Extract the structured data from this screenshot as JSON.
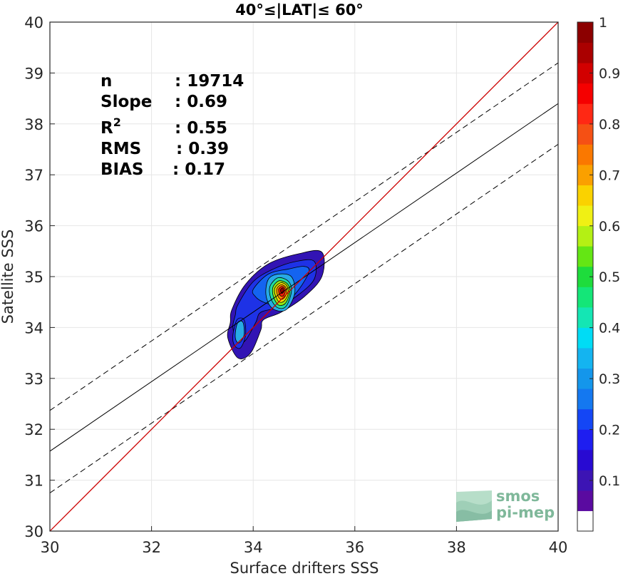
{
  "chart_data": {
    "type": "scatter",
    "subtype": "density-contour",
    "title": "40°≤|LAT|≤ 60°",
    "xlabel": "Surface drifters SSS",
    "ylabel": "Satellite SSS",
    "xlim": [
      30,
      40
    ],
    "ylim": [
      30,
      40
    ],
    "xticks": [
      "30",
      "32",
      "34",
      "36",
      "38",
      "40"
    ],
    "yticks": [
      "30",
      "31",
      "32",
      "33",
      "34",
      "35",
      "36",
      "37",
      "38",
      "39",
      "40"
    ],
    "grid": true,
    "stats": [
      {
        "label": "n",
        "value": ": 19714"
      },
      {
        "label": "Slope",
        "value": ": 0.69"
      },
      {
        "label": "R",
        "sup": "2",
        "value": ": 0.55"
      },
      {
        "label": "RMS",
        "value": ": 0.39"
      },
      {
        "label": "BIAS",
        "value": ": 0.17"
      }
    ],
    "lines": {
      "identity": {
        "x": [
          30,
          40
        ],
        "y": [
          30,
          40
        ],
        "color": "#cc0000"
      },
      "fit": {
        "x": [
          30,
          40
        ],
        "y": [
          31.57,
          38.4
        ],
        "color": "#000000"
      },
      "fit_upper": {
        "x": [
          30,
          40
        ],
        "y": [
          32.37,
          39.2
        ],
        "color": "#000000",
        "style": "dashed"
      },
      "fit_lower": {
        "x": [
          30,
          40
        ],
        "y": [
          30.75,
          37.6
        ],
        "color": "#000000",
        "style": "dashed"
      }
    },
    "density": {
      "peak": [
        34.58,
        34.72
      ],
      "levels": [
        {
          "level": 0.05,
          "color": "#3214b4",
          "points": [
            [
              33.58,
              34.35
            ],
            [
              33.85,
              34.85
            ],
            [
              34.3,
              35.25
            ],
            [
              34.9,
              35.45
            ],
            [
              35.35,
              35.48
            ],
            [
              35.35,
              35.0
            ],
            [
              35.0,
              34.6
            ],
            [
              34.55,
              34.3
            ],
            [
              34.2,
              34.15
            ],
            [
              34.15,
              33.95
            ],
            [
              33.95,
              33.5
            ],
            [
              33.7,
              33.4
            ],
            [
              33.5,
              33.8
            ],
            [
              33.55,
              34.1
            ]
          ]
        },
        {
          "level": 0.15,
          "color": "#1e32e6",
          "points": [
            [
              33.7,
              34.45
            ],
            [
              34.0,
              34.9
            ],
            [
              34.4,
              35.15
            ],
            [
              34.85,
              35.3
            ],
            [
              35.2,
              35.3
            ],
            [
              35.2,
              34.95
            ],
            [
              34.9,
              34.65
            ],
            [
              34.5,
              34.4
            ],
            [
              34.15,
              34.3
            ],
            [
              34.05,
              34.1
            ],
            [
              33.85,
              33.75
            ],
            [
              33.7,
              33.7
            ],
            [
              33.6,
              34.0
            ],
            [
              33.65,
              34.25
            ]
          ]
        },
        {
          "level": 0.25,
          "color": "#1464f0",
          "points": [
            [
              34.0,
              34.75
            ],
            [
              34.3,
              35.05
            ],
            [
              34.7,
              35.15
            ],
            [
              35.0,
              35.2
            ],
            [
              35.1,
              35.1
            ],
            [
              34.9,
              34.75
            ],
            [
              34.65,
              34.5
            ],
            [
              34.4,
              34.45
            ],
            [
              34.2,
              34.5
            ],
            [
              34.05,
              34.6
            ]
          ]
        },
        {
          "level": 0.35,
          "color": "#28aae6",
          "points": [
            [
              34.3,
              34.95
            ],
            [
              34.5,
              35.05
            ],
            [
              34.75,
              35.0
            ],
            [
              34.82,
              34.7
            ],
            [
              34.7,
              34.4
            ],
            [
              34.55,
              34.32
            ],
            [
              34.35,
              34.4
            ],
            [
              34.25,
              34.65
            ]
          ]
        },
        {
          "level": 0.45,
          "color": "#23dca0",
          "points": [
            [
              34.35,
              34.85
            ],
            [
              34.5,
              34.98
            ],
            [
              34.7,
              34.9
            ],
            [
              34.75,
              34.7
            ],
            [
              34.65,
              34.42
            ],
            [
              34.5,
              34.38
            ],
            [
              34.38,
              34.5
            ],
            [
              34.32,
              34.7
            ]
          ]
        },
        {
          "level": 0.55,
          "color": "#96e614",
          "points": [
            [
              34.4,
              34.82
            ],
            [
              34.52,
              34.92
            ],
            [
              34.68,
              34.85
            ],
            [
              34.72,
              34.68
            ],
            [
              34.63,
              34.47
            ],
            [
              34.5,
              34.44
            ],
            [
              34.42,
              34.55
            ],
            [
              34.38,
              34.7
            ]
          ]
        },
        {
          "level": 0.65,
          "color": "#fadc00",
          "points": [
            [
              34.44,
              34.8
            ],
            [
              34.55,
              34.88
            ],
            [
              34.66,
              34.82
            ],
            [
              34.69,
              34.67
            ],
            [
              34.61,
              34.52
            ],
            [
              34.51,
              34.5
            ],
            [
              34.45,
              34.6
            ],
            [
              34.42,
              34.7
            ]
          ]
        },
        {
          "level": 0.75,
          "color": "#ff8c00",
          "points": [
            [
              34.48,
              34.79
            ],
            [
              34.56,
              34.84
            ],
            [
              34.64,
              34.79
            ],
            [
              34.66,
              34.68
            ],
            [
              34.6,
              34.57
            ],
            [
              34.53,
              34.56
            ],
            [
              34.48,
              34.63
            ],
            [
              34.46,
              34.72
            ]
          ]
        },
        {
          "level": 0.85,
          "color": "#f01e0a",
          "points": [
            [
              34.51,
              34.77
            ],
            [
              34.57,
              34.81
            ],
            [
              34.62,
              34.77
            ],
            [
              34.63,
              34.69
            ],
            [
              34.59,
              34.62
            ],
            [
              34.54,
              34.62
            ],
            [
              34.51,
              34.67
            ],
            [
              34.5,
              34.73
            ]
          ]
        },
        {
          "level": 0.95,
          "color": "#960000",
          "points": [
            [
              34.54,
              34.75
            ],
            [
              34.58,
              34.78
            ],
            [
              34.6,
              34.74
            ],
            [
              34.6,
              34.7
            ],
            [
              34.57,
              34.67
            ],
            [
              34.55,
              34.68
            ],
            [
              34.54,
              34.71
            ]
          ]
        }
      ],
      "secondary": [
        {
          "level": 0.15,
          "color": "#1e32e6",
          "points": [
            [
              33.6,
              33.85
            ],
            [
              33.68,
              34.15
            ],
            [
              33.82,
              34.15
            ],
            [
              33.85,
              33.85
            ],
            [
              33.75,
              33.6
            ],
            [
              33.63,
              33.65
            ]
          ]
        },
        {
          "level": 0.25,
          "color": "#28aae6",
          "points": [
            [
              33.65,
              33.9
            ],
            [
              33.7,
              34.1
            ],
            [
              33.8,
              34.1
            ],
            [
              33.82,
              33.85
            ],
            [
              33.73,
              33.7
            ],
            [
              33.66,
              33.75
            ]
          ]
        }
      ]
    },
    "colorbar": {
      "ticks": [
        "0.1",
        "0.2",
        "0.3",
        "0.4",
        "0.5",
        "0.6",
        "0.7",
        "0.8",
        "0.9",
        "1"
      ],
      "top_values": [
        1,
        0.1
      ],
      "colors": [
        "#ffffff",
        "#5a0aa0",
        "#3c14b4",
        "#280ad2",
        "#1e1ef0",
        "#1446f5",
        "#1478f0",
        "#1496eb",
        "#14b4f0",
        "#00dcf5",
        "#14e6b4",
        "#14e678",
        "#1edc3c",
        "#64e614",
        "#b4f014",
        "#f0f014",
        "#fad200",
        "#faa000",
        "#fa7800",
        "#f55014",
        "#ff2814",
        "#f50000",
        "#d20000",
        "#aa0000",
        "#8c0000"
      ]
    },
    "logo": {
      "line1": "smos",
      "line2": "pi-mep"
    }
  }
}
